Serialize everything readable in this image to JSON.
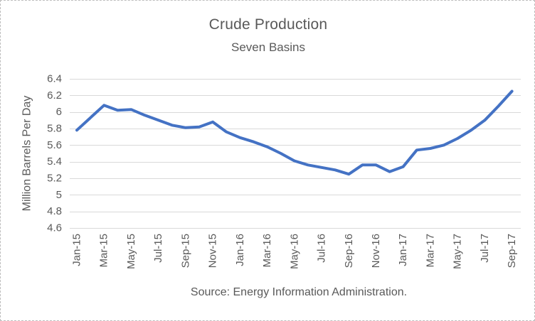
{
  "chart": {
    "title": "Crude Production",
    "subtitle": "Seven Basins",
    "source_note": "Source: Energy Information Administration."
  },
  "colors": {
    "line": "#4472C4",
    "text": "#595959",
    "gridline": "#D9D9D9",
    "background": "#FFFFFF",
    "frame_border": "#BDBDBD"
  },
  "chart_data": {
    "type": "line",
    "title": "Crude Production",
    "subtitle": "Seven Basins",
    "xlabel": "",
    "ylabel": "Million Barrels Per Day",
    "ylim": [
      4.6,
      6.4
    ],
    "yticks": [
      6.4,
      6.2,
      6,
      5.8,
      5.6,
      5.4,
      5.2,
      5,
      4.8,
      4.6
    ],
    "grid": "horizontal",
    "legend": "none",
    "line_color": "#4472C4",
    "categories": [
      "Jan-15",
      "Feb-15",
      "Mar-15",
      "Apr-15",
      "May-15",
      "Jun-15",
      "Jul-15",
      "Aug-15",
      "Sep-15",
      "Oct-15",
      "Nov-15",
      "Dec-15",
      "Jan-16",
      "Feb-16",
      "Mar-16",
      "Apr-16",
      "May-16",
      "Jun-16",
      "Jul-16",
      "Aug-16",
      "Sep-16",
      "Oct-16",
      "Nov-16",
      "Dec-16",
      "Jan-17",
      "Feb-17",
      "Mar-17",
      "Apr-17",
      "May-17",
      "Jun-17",
      "Jul-17",
      "Aug-17",
      "Sep-17"
    ],
    "values": [
      5.78,
      5.93,
      6.08,
      6.02,
      6.03,
      5.96,
      5.9,
      5.84,
      5.81,
      5.82,
      5.88,
      5.76,
      5.69,
      5.64,
      5.58,
      5.5,
      5.41,
      5.36,
      5.33,
      5.3,
      5.25,
      5.36,
      5.36,
      5.28,
      5.34,
      5.54,
      5.56,
      5.6,
      5.68,
      5.78,
      5.9,
      6.07,
      6.25
    ],
    "x_tick_every": 2,
    "x_tick_labels": [
      "Jan-15",
      "Mar-15",
      "May-15",
      "Jul-15",
      "Sep-15",
      "Nov-15",
      "Jan-16",
      "Mar-16",
      "May-16",
      "Jul-16",
      "Sep-16",
      "Nov-16",
      "Jan-17",
      "Mar-17",
      "May-17",
      "Jul-17",
      "Sep-17"
    ],
    "annotations": [
      "Source: Energy Information Administration."
    ]
  }
}
